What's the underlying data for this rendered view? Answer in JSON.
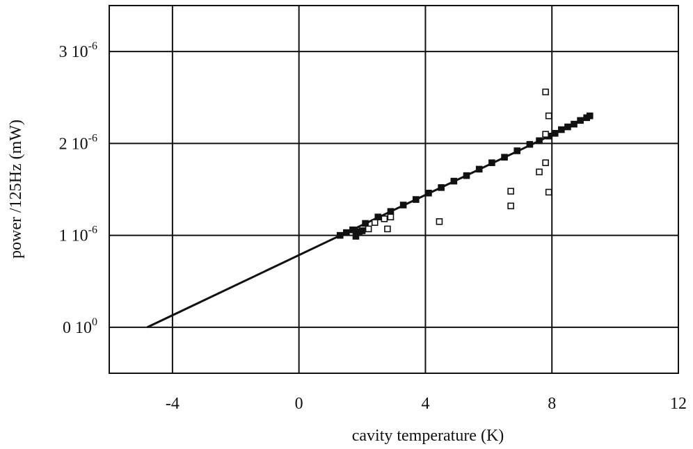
{
  "chart_data": {
    "type": "scatter",
    "x_label": "cavity temperature (K)",
    "y_label": "power /125Hz (mW)",
    "xlim": [
      -6,
      12
    ],
    "xticks": [
      -4,
      0,
      4,
      8,
      12
    ],
    "ylim": [
      -5e-07,
      3.5e-06
    ],
    "yticks": [
      {
        "value": 0,
        "label": "0 10",
        "exponent": "0"
      },
      {
        "value": 1e-06,
        "label": "1 10",
        "exponent": "-6"
      },
      {
        "value": 2e-06,
        "label": "2 10",
        "exponent": "-6"
      },
      {
        "value": 3e-06,
        "label": "3 10",
        "exponent": "-6"
      }
    ],
    "grid": true,
    "series": [
      {
        "marker": "line",
        "color": "#111111",
        "x": [
          -4.8,
          9.2
        ],
        "values": [
          0,
          2.29e-06
        ]
      },
      {
        "marker": "filled",
        "color": "#111111",
        "x": [
          1.3,
          1.5,
          1.7,
          1.8,
          1.9,
          2.0,
          2.1,
          2.5,
          2.9,
          3.3,
          3.7,
          4.1,
          4.5,
          4.9,
          5.3,
          5.7,
          6.1,
          6.5,
          6.9,
          7.3,
          7.6,
          7.9,
          8.1,
          8.3,
          8.5,
          8.7,
          8.9,
          9.1,
          9.2
        ],
        "values": [
          1e-06,
          1.03e-06,
          1.06e-06,
          9.9e-07,
          1.04e-06,
          1.05e-06,
          1.13e-06,
          1.2e-06,
          1.26e-06,
          1.33e-06,
          1.39e-06,
          1.46e-06,
          1.52e-06,
          1.59e-06,
          1.65e-06,
          1.72e-06,
          1.79e-06,
          1.85e-06,
          1.92e-06,
          1.99e-06,
          2.03e-06,
          2.08e-06,
          2.11e-06,
          2.15e-06,
          2.18e-06,
          2.21e-06,
          2.25e-06,
          2.28e-06,
          2.3e-06
        ]
      },
      {
        "marker": "open",
        "color": "#111111",
        "x": [
          2.2,
          2.4,
          2.7,
          2.8,
          2.9,
          4.44,
          6.7,
          6.7,
          7.6,
          7.8,
          7.9,
          7.8,
          7.9,
          7.8
        ],
        "values": [
          1.07e-06,
          1.14e-06,
          1.18e-06,
          1.07e-06,
          1.2e-06,
          1.15e-06,
          1.32e-06,
          1.48e-06,
          1.69e-06,
          1.79e-06,
          1.47e-06,
          2.56e-06,
          2.3e-06,
          2.1e-06
        ]
      }
    ]
  }
}
